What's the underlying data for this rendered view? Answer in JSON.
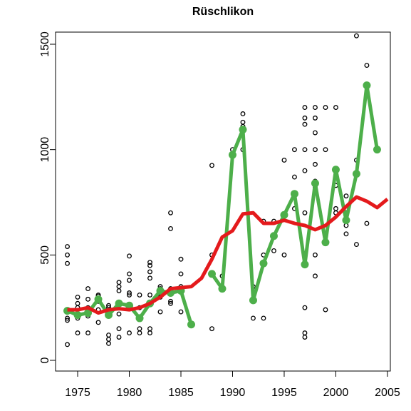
{
  "chart_data": {
    "type": "line",
    "title": "Rüschlikon",
    "xlim": [
      1972.86,
      2005.28
    ],
    "ylim": [
      -50.8,
      1557.6
    ],
    "xticks": [
      1975,
      1980,
      1985,
      1990,
      1995,
      2000,
      2005
    ],
    "yticks": [
      0,
      500,
      1000,
      1500
    ],
    "series": [
      {
        "type": "scatter",
        "color": "#000000",
        "x": [
          1974,
          1974,
          1974,
          1974,
          1974,
          1974,
          1974,
          1975,
          1975,
          1975,
          1975,
          1975,
          1976,
          1976,
          1976,
          1976,
          1976,
          1976,
          1977,
          1977,
          1977,
          1977,
          1977,
          1977,
          1978,
          1978,
          1978,
          1978,
          1978,
          1979,
          1979,
          1979,
          1979,
          1979,
          1979,
          1979,
          1980,
          1980,
          1980,
          1980,
          1980,
          1980,
          1980,
          1981,
          1981,
          1981,
          1981,
          1982,
          1982,
          1982,
          1982,
          1982,
          1982,
          1982,
          1983,
          1983,
          1983,
          1983,
          1983,
          1984,
          1984,
          1984,
          1984,
          1984,
          1984,
          1985,
          1985,
          1985,
          1985,
          1985,
          1988,
          1988,
          1988,
          1989,
          1990,
          1991,
          1991,
          1991,
          1991,
          1992,
          1992,
          1993,
          1993,
          1993,
          1994,
          1994,
          1995,
          1995,
          1995,
          1996,
          1996,
          1996,
          1997,
          1997,
          1997,
          1997,
          1997,
          1997,
          1997,
          1997,
          1997,
          1997,
          1998,
          1998,
          1998,
          1998,
          1998,
          1998,
          1998,
          1998,
          1998,
          1999,
          1999,
          1999,
          2000,
          2000,
          2000,
          2000,
          2001,
          2001,
          2001,
          2001,
          2002,
          2002,
          2002,
          2003,
          2003,
          2004
        ],
        "values": [
          540,
          500,
          460,
          240,
          200,
          190,
          75,
          300,
          270,
          250,
          200,
          130,
          340,
          290,
          250,
          220,
          210,
          130,
          310,
          305,
          290,
          280,
          240,
          180,
          260,
          250,
          120,
          100,
          80,
          370,
          350,
          330,
          270,
          220,
          150,
          110,
          495,
          410,
          380,
          320,
          310,
          250,
          130,
          310,
          250,
          150,
          130,
          465,
          450,
          420,
          390,
          310,
          150,
          130,
          350,
          340,
          320,
          300,
          230,
          700,
          625,
          340,
          320,
          280,
          270,
          480,
          410,
          350,
          330,
          230,
          925,
          500,
          150,
          400,
          1000,
          1170,
          1130,
          1110,
          1000,
          350,
          200,
          660,
          500,
          200,
          660,
          520,
          950,
          690,
          500,
          1000,
          870,
          720,
          1200,
          1150,
          1120,
          1000,
          900,
          700,
          450,
          250,
          130,
          110,
          1200,
          1150,
          1080,
          1000,
          930,
          850,
          820,
          500,
          400,
          1200,
          1000,
          240,
          1200,
          830,
          720,
          700,
          780,
          700,
          640,
          600,
          1540,
          950,
          550,
          1400,
          650,
          1000
        ]
      },
      {
        "type": "line",
        "markers": true,
        "color": "#4daf4a",
        "x": [
          1974,
          1975,
          1976,
          1977,
          1978,
          1979,
          1980,
          1981,
          1982,
          1983,
          1984,
          1985,
          1986,
          1987,
          1988,
          1989,
          1990,
          1991,
          1992,
          1993,
          1994,
          1995,
          1996,
          1997,
          1998,
          1999,
          2000,
          2001,
          2002,
          2003,
          2004
        ],
        "values": [
          235,
          215,
          225,
          290,
          215,
          270,
          260,
          200,
          270,
          330,
          320,
          330,
          170,
          null,
          410,
          340,
          975,
          1095,
          285,
          460,
          590,
          690,
          790,
          455,
          840,
          560,
          905,
          665,
          885,
          1305,
          1000
        ]
      },
      {
        "type": "line",
        "markers": false,
        "color": "#e41a1c",
        "x": [
          1974,
          1975,
          1976,
          1977,
          1978,
          1979,
          1980,
          1981,
          1982,
          1983,
          1984,
          1985,
          1986,
          1987,
          1988,
          1989,
          1990,
          1991,
          1992,
          1993,
          1994,
          1995,
          1996,
          1997,
          1998,
          1999,
          2000,
          2001,
          2002,
          2003,
          2004,
          2005
        ],
        "values": [
          240,
          240,
          250,
          225,
          240,
          245,
          240,
          250,
          270,
          300,
          340,
          345,
          350,
          390,
          480,
          585,
          615,
          695,
          700,
          650,
          650,
          665,
          650,
          640,
          620,
          640,
          680,
          730,
          775,
          755,
          725,
          765
        ]
      }
    ]
  }
}
